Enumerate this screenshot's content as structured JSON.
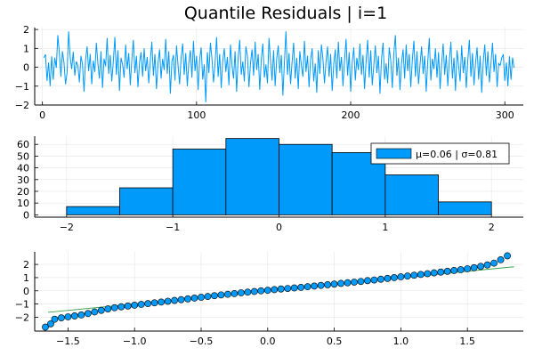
{
  "title": "Quantile Residuals | i=1",
  "colors": {
    "series": "#009AFA",
    "fit_line": "#3DA44D",
    "grid": "#E5E5E5",
    "axis": "#000000"
  },
  "chart_data": [
    {
      "type": "line",
      "name": "residual-series",
      "title": "Quantile Residuals | i=1",
      "xlim": [
        -5,
        312
      ],
      "ylim": [
        -2,
        2.1
      ],
      "xticks": [
        0,
        100,
        200,
        300
      ],
      "yticks": [
        -2,
        -1,
        0,
        1,
        2
      ],
      "grid": true,
      "n_points": 306,
      "series": [
        {
          "y": [
            0.5,
            0.68,
            -0.72,
            0.25,
            -1.0,
            0.58,
            -0.66,
            0.51,
            -0.03,
            1.7,
            0.75,
            -0.5,
            0.85,
            0.24,
            -0.9,
            -0.3,
            1.9,
            0.55,
            -0.1,
            0.82,
            -0.45,
            0.3,
            0.1,
            -0.8,
            0.6,
            0.15,
            -1.3,
            0.4,
            1.1,
            -0.2,
            0.7,
            -0.9,
            0.35,
            -0.25,
            1.3,
            0.2,
            -0.6,
            0.85,
            -1.1,
            0.45,
            0.05,
            1.55,
            -0.35,
            0.65,
            -0.75,
            0.3,
            1.6,
            -0.4,
            0.9,
            -1.25,
            0.5,
            0.15,
            -0.55,
            1.2,
            -0.1,
            0.75,
            -0.95,
            0.4,
            1.45,
            -0.3,
            0.6,
            -1.05,
            0.25,
            0.8,
            -0.5,
            1.0,
            -0.2,
            0.55,
            -0.85,
            0.35,
            1.35,
            -0.45,
            0.7,
            -1.15,
            0.2,
            0.95,
            -0.6,
            0.45,
            -0.15,
            1.5,
            -0.35,
            0.85,
            -1.4,
            0.3,
            0.65,
            -0.7,
            1.15,
            0.1,
            -0.9,
            0.5,
            1.25,
            -0.4,
            0.75,
            -1.0,
            0.25,
            0.9,
            -0.55,
            1.4,
            -0.2,
            0.6,
            -1.2,
            0.4,
            1.05,
            -0.65,
            0.15,
            -1.85,
            0.8,
            -0.3,
            1.3,
            0.45,
            -0.8,
            0.2,
            1.6,
            -0.5,
            0.7,
            -1.1,
            0.35,
            1.0,
            -0.25,
            0.55,
            -0.95,
            1.2,
            0.1,
            -0.6,
            0.85,
            -1.3,
            0.5,
            1.45,
            -0.4,
            0.3,
            -0.75,
            1.1,
            0.6,
            -1.05,
            0.2,
            0.95,
            -0.45,
            1.35,
            -0.15,
            0.7,
            -1.2,
            0.4,
            1.25,
            -0.55,
            0.15,
            -0.85,
            1.55,
            0.35,
            -0.7,
            0.9,
            -1.0,
            0.45,
            1.15,
            -0.3,
            0.65,
            -1.5,
            0.25,
            1.9,
            -0.4,
            0.75,
            -0.9,
            0.3,
            1.3,
            -0.6,
            0.5,
            -1.15,
            0.85,
            0.1,
            -0.5,
            1.4,
            -0.25,
            0.6,
            -1.05,
            0.4,
            1.0,
            -0.75,
            0.2,
            -1.35,
            0.9,
            -0.35,
            1.2,
            0.45,
            -0.85,
            0.3,
            1.1,
            -0.5,
            0.7,
            -1.25,
            0.15,
            0.95,
            -0.6,
            1.35,
            -0.2,
            0.55,
            -1.0,
            0.35,
            1.5,
            -0.45,
            0.8,
            -1.3,
            0.25,
            1.05,
            -0.7,
            0.5,
            -0.15,
            1.25,
            -0.4,
            0.65,
            -1.15,
            0.3,
            1.45,
            -0.55,
            0.9,
            -0.95,
            0.1,
            1.15,
            -0.3,
            0.6,
            -1.4,
            0.45,
            1.3,
            -0.65,
            0.2,
            -0.85,
            1.05,
            0.35,
            -1.1,
            0.75,
            1.7,
            -0.45,
            0.5,
            -1.2,
            0.25,
            0.95,
            -0.6,
            1.2,
            -0.2,
            0.7,
            -1.05,
            0.4,
            1.4,
            -0.5,
            0.85,
            -0.9,
            0.15,
            1.1,
            -0.35,
            0.6,
            -1.3,
            0.3,
            1.55,
            -0.7,
            0.45,
            -0.1,
            1.0,
            -0.55,
            0.8,
            -1.15,
            0.2,
            1.25,
            -0.4,
            0.65,
            -1.0,
            0.35,
            1.35,
            -0.6,
            0.5,
            -1.25,
            0.9,
            0.1,
            -0.75,
            1.15,
            -0.3,
            0.55,
            -1.1,
            0.4,
            1.45,
            -0.5,
            0.75,
            -0.95,
            0.25,
            1.05,
            -0.65,
            0.6,
            -1.35,
            0.3,
            1.2,
            -0.45,
            0.85,
            -0.8,
            0.15,
            1.3,
            -0.25,
            0.7,
            -1.05,
            0.2,
            0.1
          ]
        }
      ]
    },
    {
      "type": "bar",
      "name": "residual-histogram",
      "bin_edges": [
        -2.0,
        -1.5,
        -1.0,
        -0.5,
        0.0,
        0.5,
        1.0,
        1.5,
        2.0
      ],
      "values": [
        7,
        23,
        56,
        65,
        60,
        53,
        34,
        11
      ],
      "xlim": [
        -2.3,
        2.3
      ],
      "ylim": [
        -2,
        67
      ],
      "xticks": [
        -2,
        -1,
        0,
        1,
        2
      ],
      "yticks": [
        0,
        10,
        20,
        30,
        40,
        50,
        60
      ],
      "grid": true,
      "legend": {
        "label": "μ=0.06 | σ=0.81",
        "placement": "top-right"
      }
    },
    {
      "type": "scatter",
      "name": "qq-plot",
      "xlim": [
        -1.75,
        1.92
      ],
      "ylim": [
        -3.05,
        2.95
      ],
      "xticks": [
        -1.5,
        -1.0,
        -0.5,
        0.0,
        0.5,
        1.0,
        1.5
      ],
      "yticks": [
        -2,
        -1,
        0,
        1,
        2
      ],
      "grid": true,
      "reference_line": {
        "x": [
          -1.65,
          1.85
        ],
        "y": [
          -1.63,
          1.82
        ]
      },
      "points": {
        "x": [
          -1.67,
          -1.63,
          -1.6,
          -1.55,
          -1.5,
          -1.45,
          -1.4,
          -1.35,
          -1.3,
          -1.25,
          -1.2,
          -1.15,
          -1.1,
          -1.05,
          -1.0,
          -0.95,
          -0.9,
          -0.85,
          -0.8,
          -0.75,
          -0.7,
          -0.65,
          -0.6,
          -0.55,
          -0.5,
          -0.45,
          -0.4,
          -0.35,
          -0.3,
          -0.25,
          -0.2,
          -0.15,
          -0.1,
          -0.05,
          0.0,
          0.05,
          0.1,
          0.15,
          0.2,
          0.25,
          0.3,
          0.35,
          0.4,
          0.45,
          0.5,
          0.55,
          0.6,
          0.65,
          0.7,
          0.75,
          0.8,
          0.85,
          0.9,
          0.95,
          1.0,
          1.05,
          1.1,
          1.15,
          1.2,
          1.25,
          1.3,
          1.35,
          1.4,
          1.45,
          1.5,
          1.55,
          1.6,
          1.65,
          1.7,
          1.75,
          1.8
        ],
        "y": [
          -2.75,
          -2.5,
          -2.15,
          -2.05,
          -1.97,
          -1.9,
          -1.83,
          -1.72,
          -1.6,
          -1.48,
          -1.37,
          -1.28,
          -1.21,
          -1.15,
          -1.09,
          -1.03,
          -0.97,
          -0.91,
          -0.85,
          -0.79,
          -0.73,
          -0.67,
          -0.61,
          -0.55,
          -0.49,
          -0.43,
          -0.37,
          -0.31,
          -0.26,
          -0.21,
          -0.15,
          -0.1,
          -0.05,
          0.0,
          0.04,
          0.09,
          0.14,
          0.18,
          0.22,
          0.26,
          0.31,
          0.36,
          0.41,
          0.46,
          0.51,
          0.56,
          0.61,
          0.66,
          0.71,
          0.77,
          0.82,
          0.88,
          0.94,
          1.0,
          1.06,
          1.12,
          1.18,
          1.24,
          1.3,
          1.36,
          1.42,
          1.48,
          1.54,
          1.6,
          1.67,
          1.75,
          1.85,
          1.96,
          2.1,
          2.35,
          2.65
        ]
      }
    }
  ]
}
